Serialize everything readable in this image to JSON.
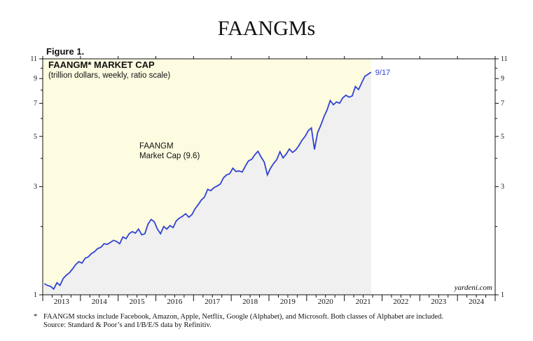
{
  "page": {
    "title": "FAANGMs",
    "figure_label": "Figure 1.",
    "footnote_star": "*",
    "footnote": "FAANGM stocks include Facebook, Amazon, Apple, Netflix, Google (Alphabet), and Microsoft. Both classes of Alphabet are included.",
    "source": "Source: Standard & Poor’s and I/B/E/S data by Refinitiv.",
    "brand": "yardeni.com"
  },
  "colors": {
    "plot_background": "#fdfbe0",
    "shaded_area": "#f0f0f0",
    "line": "#2f42d6"
  },
  "chart_data": {
    "type": "line",
    "title": "FAANGM* MARKET CAP",
    "subtitle": "(trillion dollars, weekly, ratio scale)",
    "y_scale": "log",
    "ylim": [
      1,
      11
    ],
    "xlim": [
      "2013-01",
      "2024-12"
    ],
    "y_ticks": [
      1,
      3,
      5,
      7,
      9,
      11
    ],
    "x_tick_labels": [
      "2013",
      "2014",
      "2015",
      "2016",
      "2017",
      "2018",
      "2019",
      "2020",
      "2021",
      "2022",
      "2023",
      "2024"
    ],
    "grid": false,
    "annotation": "FAANGM\nMarket Cap (9.6)",
    "end_label": "9/17",
    "series": [
      {
        "values": [
          [
            "2013-01",
            1.12
          ],
          [
            "2013-02",
            1.1
          ],
          [
            "2013-03",
            1.09
          ],
          [
            "2013-04",
            1.06
          ],
          [
            "2013-05",
            1.13
          ],
          [
            "2013-06",
            1.1
          ],
          [
            "2013-07",
            1.18
          ],
          [
            "2013-08",
            1.22
          ],
          [
            "2013-09",
            1.25
          ],
          [
            "2013-10",
            1.3
          ],
          [
            "2013-11",
            1.36
          ],
          [
            "2013-12",
            1.4
          ],
          [
            "2014-01",
            1.38
          ],
          [
            "2014-02",
            1.45
          ],
          [
            "2014-03",
            1.47
          ],
          [
            "2014-04",
            1.52
          ],
          [
            "2014-05",
            1.55
          ],
          [
            "2014-06",
            1.6
          ],
          [
            "2014-07",
            1.62
          ],
          [
            "2014-08",
            1.68
          ],
          [
            "2014-09",
            1.67
          ],
          [
            "2014-10",
            1.7
          ],
          [
            "2014-11",
            1.74
          ],
          [
            "2014-12",
            1.72
          ],
          [
            "2015-01",
            1.68
          ],
          [
            "2015-02",
            1.8
          ],
          [
            "2015-03",
            1.77
          ],
          [
            "2015-04",
            1.86
          ],
          [
            "2015-05",
            1.9
          ],
          [
            "2015-06",
            1.87
          ],
          [
            "2015-07",
            1.95
          ],
          [
            "2015-08",
            1.84
          ],
          [
            "2015-09",
            1.86
          ],
          [
            "2015-10",
            2.05
          ],
          [
            "2015-11",
            2.15
          ],
          [
            "2015-12",
            2.1
          ],
          [
            "2016-01",
            1.95
          ],
          [
            "2016-02",
            1.86
          ],
          [
            "2016-03",
            2.0
          ],
          [
            "2016-04",
            1.95
          ],
          [
            "2016-05",
            2.02
          ],
          [
            "2016-06",
            1.98
          ],
          [
            "2016-07",
            2.12
          ],
          [
            "2016-08",
            2.18
          ],
          [
            "2016-09",
            2.22
          ],
          [
            "2016-10",
            2.28
          ],
          [
            "2016-11",
            2.2
          ],
          [
            "2016-12",
            2.26
          ],
          [
            "2017-01",
            2.4
          ],
          [
            "2017-02",
            2.5
          ],
          [
            "2017-03",
            2.62
          ],
          [
            "2017-04",
            2.7
          ],
          [
            "2017-05",
            2.92
          ],
          [
            "2017-06",
            2.88
          ],
          [
            "2017-07",
            2.97
          ],
          [
            "2017-08",
            3.02
          ],
          [
            "2017-09",
            3.08
          ],
          [
            "2017-10",
            3.28
          ],
          [
            "2017-11",
            3.38
          ],
          [
            "2017-12",
            3.42
          ],
          [
            "2018-01",
            3.62
          ],
          [
            "2018-02",
            3.5
          ],
          [
            "2018-03",
            3.52
          ],
          [
            "2018-04",
            3.48
          ],
          [
            "2018-05",
            3.7
          ],
          [
            "2018-06",
            3.9
          ],
          [
            "2018-07",
            3.96
          ],
          [
            "2018-08",
            4.15
          ],
          [
            "2018-09",
            4.3
          ],
          [
            "2018-10",
            4.05
          ],
          [
            "2018-11",
            3.85
          ],
          [
            "2018-12",
            3.38
          ],
          [
            "2019-01",
            3.62
          ],
          [
            "2019-02",
            3.8
          ],
          [
            "2019-03",
            3.95
          ],
          [
            "2019-04",
            4.28
          ],
          [
            "2019-05",
            4.02
          ],
          [
            "2019-06",
            4.18
          ],
          [
            "2019-07",
            4.4
          ],
          [
            "2019-08",
            4.25
          ],
          [
            "2019-09",
            4.35
          ],
          [
            "2019-10",
            4.55
          ],
          [
            "2019-11",
            4.8
          ],
          [
            "2019-12",
            5.0
          ],
          [
            "2020-01",
            5.3
          ],
          [
            "2020-02",
            5.45
          ],
          [
            "2020-03",
            4.38
          ],
          [
            "2020-04",
            5.2
          ],
          [
            "2020-05",
            5.6
          ],
          [
            "2020-06",
            6.1
          ],
          [
            "2020-07",
            6.55
          ],
          [
            "2020-08",
            7.2
          ],
          [
            "2020-09",
            6.9
          ],
          [
            "2020-10",
            7.1
          ],
          [
            "2020-11",
            7.0
          ],
          [
            "2020-12",
            7.4
          ],
          [
            "2021-01",
            7.6
          ],
          [
            "2021-02",
            7.45
          ],
          [
            "2021-03",
            7.55
          ],
          [
            "2021-04",
            8.3
          ],
          [
            "2021-05",
            8.05
          ],
          [
            "2021-06",
            8.6
          ],
          [
            "2021-07",
            9.2
          ],
          [
            "2021-08",
            9.4
          ],
          [
            "2021-09",
            9.6
          ]
        ]
      }
    ]
  }
}
